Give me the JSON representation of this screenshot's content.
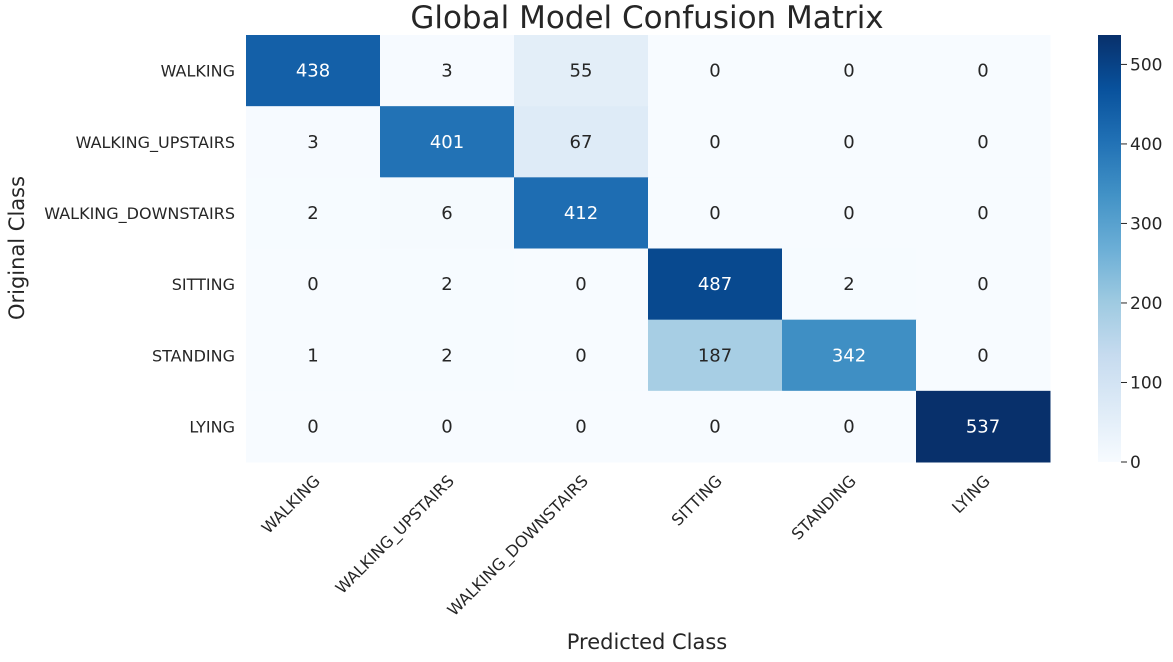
{
  "chart_data": {
    "type": "heatmap",
    "title": "Global Model Confusion Matrix",
    "xlabel": "Predicted Class",
    "ylabel": "Original Class",
    "x_categories": [
      "WALKING",
      "WALKING_UPSTAIRS",
      "WALKING_DOWNSTAIRS",
      "SITTING",
      "STANDING",
      "LYING"
    ],
    "y_categories": [
      "WALKING",
      "WALKING_UPSTAIRS",
      "WALKING_DOWNSTAIRS",
      "SITTING",
      "STANDING",
      "LYING"
    ],
    "values": [
      [
        438,
        3,
        55,
        0,
        0,
        0
      ],
      [
        3,
        401,
        67,
        0,
        0,
        0
      ],
      [
        2,
        6,
        412,
        0,
        0,
        0
      ],
      [
        0,
        2,
        0,
        487,
        2,
        0
      ],
      [
        1,
        2,
        0,
        187,
        342,
        0
      ],
      [
        0,
        0,
        0,
        0,
        0,
        537
      ]
    ],
    "colormap": "Blues",
    "colorbar": {
      "min": 0,
      "max": 537,
      "ticks": [
        0,
        100,
        200,
        300,
        400,
        500
      ]
    }
  }
}
